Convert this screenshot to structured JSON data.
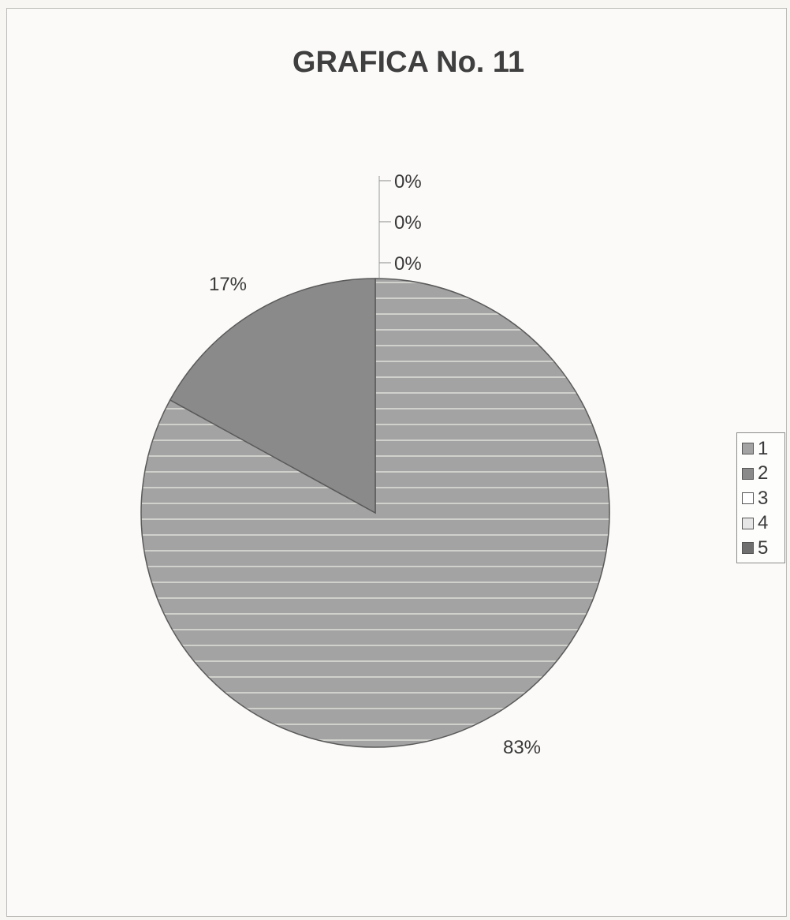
{
  "chart_data": {
    "type": "pie",
    "title": "GRAFICA No. 11",
    "categories": [
      "1",
      "2",
      "3",
      "4",
      "5"
    ],
    "values": [
      83,
      17,
      0,
      0,
      0
    ],
    "labels": [
      "83%",
      "17%",
      "0%",
      "0%",
      "0%"
    ],
    "colors": [
      "#a3a3a3",
      "#8a8a8a",
      "#ffffff",
      "#e6e6e6",
      "#6f6f6f"
    ],
    "legend_position": "right"
  }
}
